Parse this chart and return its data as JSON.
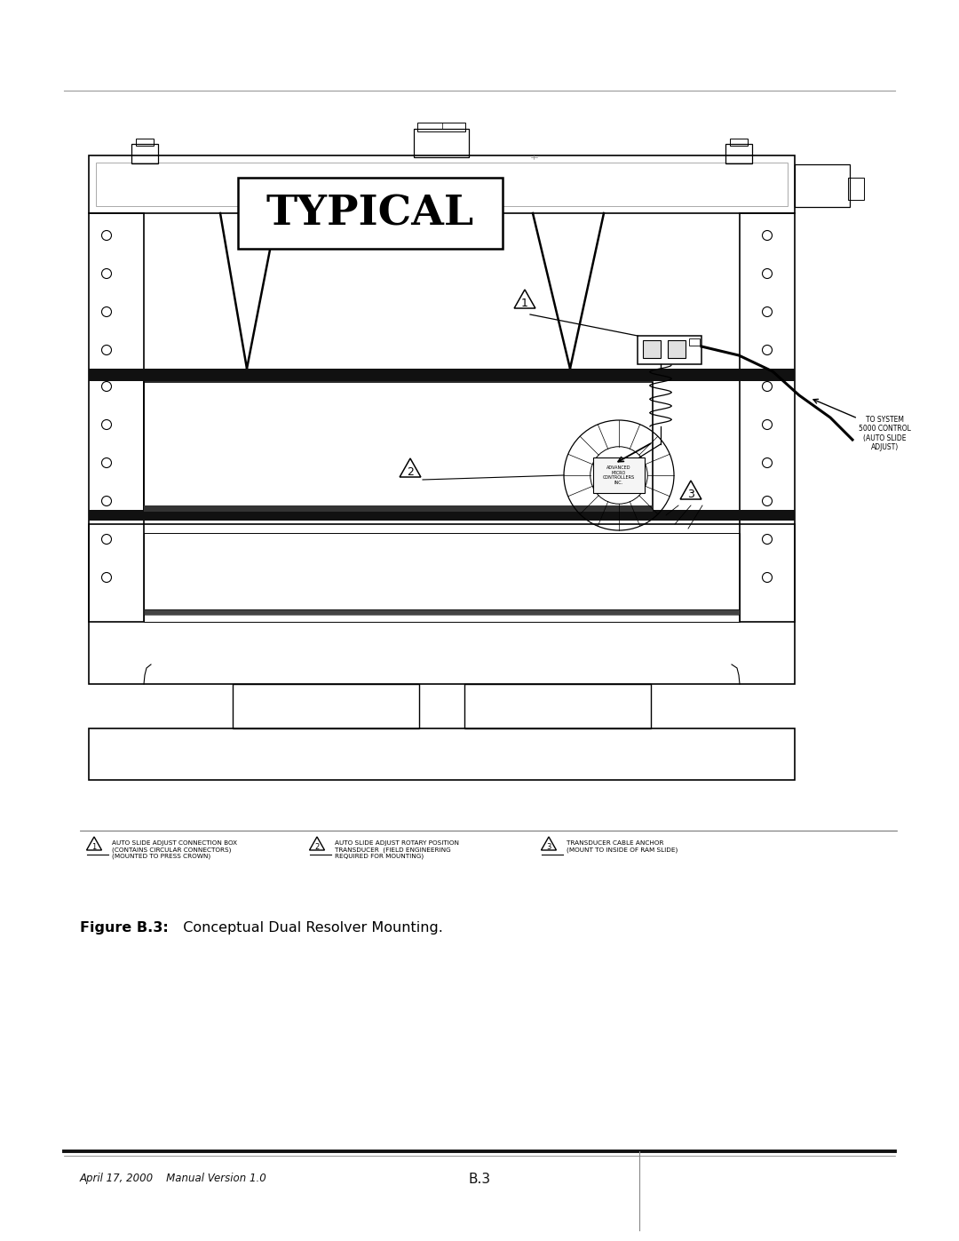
{
  "bg_color": "#ffffff",
  "lc": "#000000",
  "llc": "#cccccc",
  "page_width": 10.8,
  "page_height": 13.97,
  "typical_label": "TYPICAL",
  "annotation_text": "TO SYSTEM\n5000 CONTROL\n(AUTO SLIDE\nADJUST)",
  "footer_left": "April 17, 2000    Manual Version 1.0",
  "footer_center": "B.3",
  "caption_bold": "Figure B.3:",
  "caption_normal": "  Conceptual Dual Resolver Mounting.",
  "label1_text": "AUTO SLIDE ADJUST CONNECTION BOX\n(CONTAINS CIRCULAR CONNECTORS)\n(MOUNTED TO PRESS CROWN)",
  "label2_text": "AUTO SLIDE ADJUST ROTARY POSITION\nTRANSDUCER  (FIELD ENGINEERING\nREQUIRED FOR MOUNTING)",
  "label3_text": "TRANSDUCER CABLE ANCHOR\n(MOUNT TO INSIDE OF RAM SLIDE)"
}
